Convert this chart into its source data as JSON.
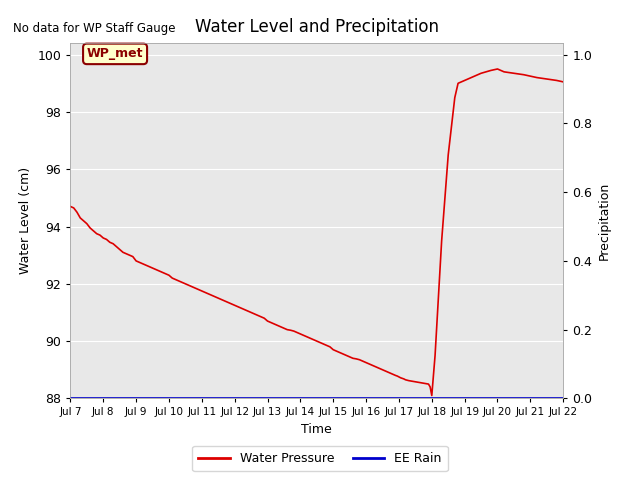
{
  "title": "Water Level and Precipitation",
  "no_data_text": "No data for WP Staff Gauge",
  "wp_met_label": "WP_met",
  "xlabel": "Time",
  "ylabel_left": "Water Level (cm)",
  "ylabel_right": "Precipitation",
  "ylim_left": [
    88,
    100.4
  ],
  "ylim_right": [
    0.0,
    1.0333
  ],
  "yticks_left": [
    88,
    90,
    92,
    94,
    96,
    98,
    100
  ],
  "yticks_right": [
    0.0,
    0.2,
    0.4,
    0.6,
    0.8,
    1.0
  ],
  "xtick_labels": [
    "Jul 7",
    "Jul 8",
    "Jul 9",
    "Jul 10",
    "Jul 11",
    "Jul 12",
    "Jul 13",
    "Jul 14",
    "Jul 15",
    "Jul 16",
    "Jul 17",
    "Jul 18",
    "Jul 19",
    "Jul 20",
    "Jul 21",
    "Jul 22"
  ],
  "line_color_wp": "#dd0000",
  "line_color_rain": "#0000cc",
  "legend_entries": [
    "Water Pressure",
    "EE Rain"
  ],
  "bg_color": "#e8e8e8",
  "water_pressure_x": [
    0.0,
    0.1,
    0.2,
    0.3,
    0.4,
    0.5,
    0.6,
    0.7,
    0.8,
    0.9,
    1.0,
    1.1,
    1.2,
    1.3,
    1.4,
    1.5,
    1.6,
    1.7,
    1.8,
    1.9,
    2.0,
    2.1,
    2.2,
    2.3,
    2.4,
    2.5,
    2.6,
    2.7,
    2.8,
    2.9,
    3.0,
    3.1,
    3.2,
    3.3,
    3.4,
    3.5,
    3.6,
    3.7,
    3.8,
    3.9,
    4.0,
    4.1,
    4.2,
    4.3,
    4.4,
    4.5,
    4.6,
    4.7,
    4.8,
    4.9,
    5.0,
    5.1,
    5.2,
    5.3,
    5.4,
    5.5,
    5.6,
    5.7,
    5.8,
    5.9,
    6.0,
    6.1,
    6.2,
    6.3,
    6.4,
    6.5,
    6.6,
    6.7,
    6.8,
    6.9,
    7.0,
    7.1,
    7.2,
    7.3,
    7.4,
    7.5,
    7.6,
    7.7,
    7.8,
    7.9,
    8.0,
    8.1,
    8.2,
    8.3,
    8.4,
    8.5,
    8.6,
    8.7,
    8.8,
    8.9,
    9.0,
    9.1,
    9.2,
    9.3,
    9.4,
    9.5,
    9.6,
    9.7,
    9.8,
    9.9,
    9.95,
    10.0,
    10.05,
    10.1,
    10.15,
    10.2,
    10.3,
    10.4,
    10.5,
    10.6,
    10.7,
    10.8,
    10.9,
    10.95,
    11.0,
    11.1,
    11.2,
    11.3,
    11.4,
    11.5,
    11.6,
    11.7,
    11.8,
    12.0,
    12.2,
    12.5,
    12.8,
    13.0,
    13.2,
    13.5,
    13.8,
    14.0,
    14.2,
    14.5,
    14.8,
    15.0
  ],
  "water_pressure_y": [
    94.7,
    94.65,
    94.5,
    94.3,
    94.2,
    94.1,
    93.95,
    93.85,
    93.75,
    93.7,
    93.6,
    93.55,
    93.45,
    93.4,
    93.3,
    93.2,
    93.1,
    93.05,
    93.0,
    92.95,
    92.8,
    92.75,
    92.7,
    92.65,
    92.6,
    92.55,
    92.5,
    92.45,
    92.4,
    92.35,
    92.3,
    92.2,
    92.15,
    92.1,
    92.05,
    92.0,
    91.95,
    91.9,
    91.85,
    91.8,
    91.75,
    91.7,
    91.65,
    91.6,
    91.55,
    91.5,
    91.45,
    91.4,
    91.35,
    91.3,
    91.25,
    91.2,
    91.15,
    91.1,
    91.05,
    91.0,
    90.95,
    90.9,
    90.85,
    90.8,
    90.7,
    90.65,
    90.6,
    90.55,
    90.5,
    90.45,
    90.4,
    90.38,
    90.35,
    90.3,
    90.25,
    90.2,
    90.15,
    90.1,
    90.05,
    90.0,
    89.95,
    89.9,
    89.85,
    89.8,
    89.7,
    89.65,
    89.6,
    89.55,
    89.5,
    89.45,
    89.4,
    89.38,
    89.35,
    89.3,
    89.25,
    89.2,
    89.15,
    89.1,
    89.05,
    89.0,
    88.95,
    88.9,
    88.85,
    88.8,
    88.78,
    88.75,
    88.72,
    88.7,
    88.68,
    88.65,
    88.62,
    88.6,
    88.58,
    88.56,
    88.54,
    88.52,
    88.5,
    88.4,
    88.1,
    89.5,
    91.5,
    93.5,
    95.0,
    96.5,
    97.5,
    98.5,
    99.0,
    99.1,
    99.2,
    99.35,
    99.45,
    99.5,
    99.4,
    99.35,
    99.3,
    99.25,
    99.2,
    99.15,
    99.1,
    99.05
  ]
}
